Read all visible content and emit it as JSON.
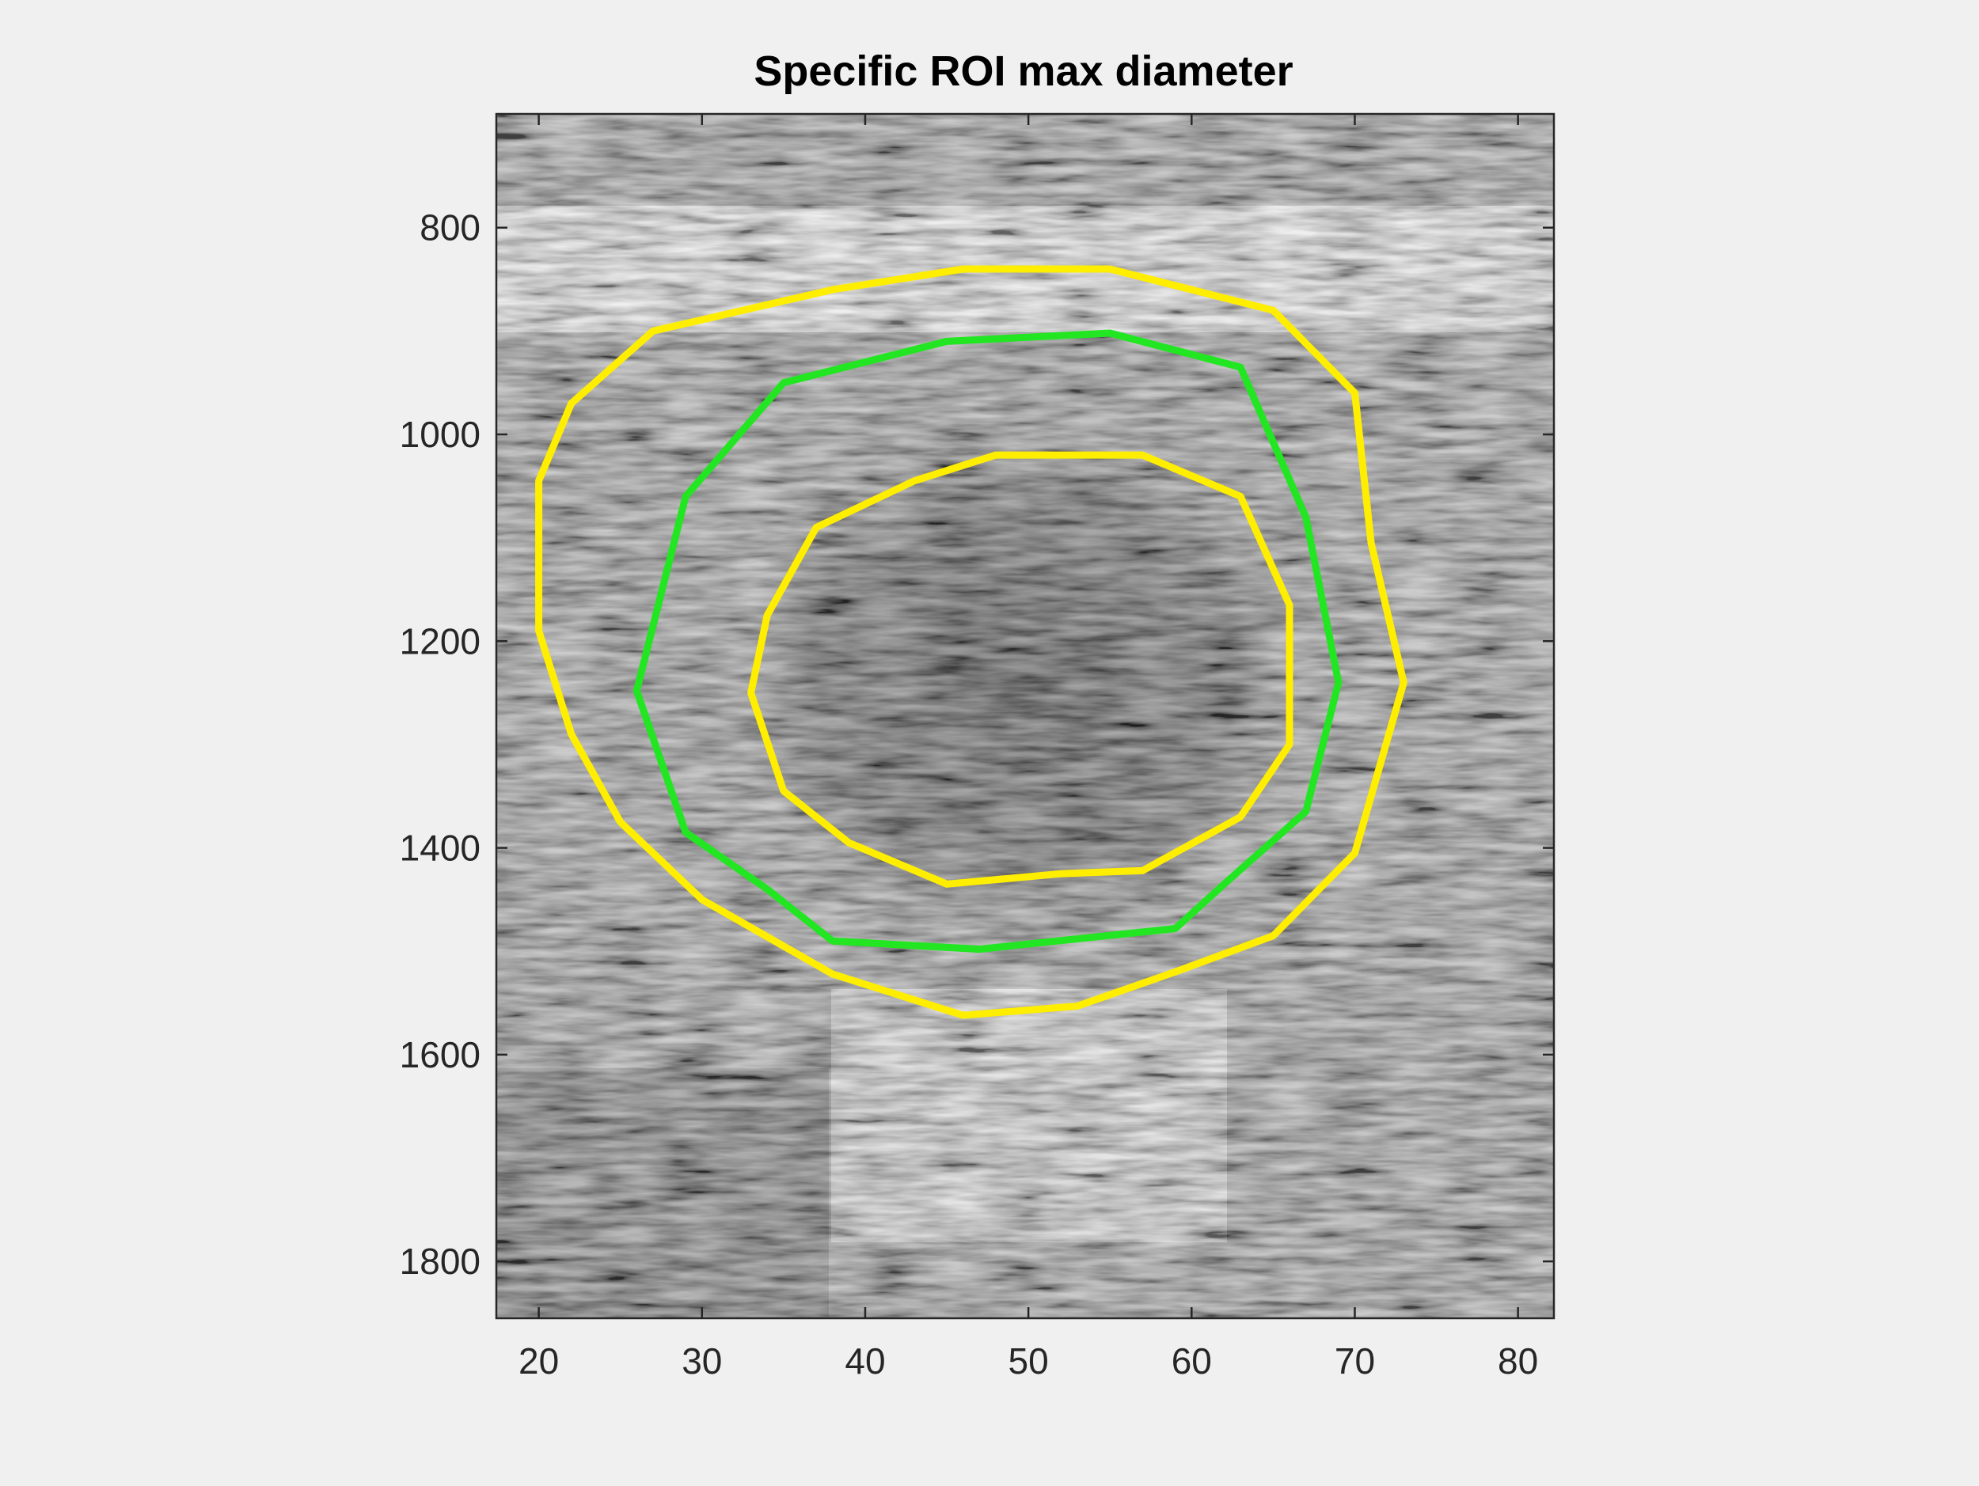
{
  "chart_data": {
    "type": "image",
    "title": "Specific ROI max diameter",
    "xlabel": "",
    "ylabel": "",
    "xlim": [
      17.4,
      82.2
    ],
    "ylim": [
      690,
      1855
    ],
    "y_reversed": true,
    "x_ticks": [
      20,
      30,
      40,
      50,
      60,
      70,
      80
    ],
    "y_ticks": [
      800,
      1000,
      1200,
      1400,
      1600,
      1800
    ],
    "colormap": "gray",
    "background_image": "grayscale ultrasound speckle; dark elliptical lumen centred near (51, 1230), bright bands near y 800-900 and y 1550-1750",
    "contours": [
      {
        "name": "",
        "color": "#ffee00",
        "points": [
          [
            46,
            1562
          ],
          [
            53,
            1553
          ],
          [
            59,
            1520
          ],
          [
            65,
            1485
          ],
          [
            70,
            1405
          ],
          [
            73,
            1240
          ],
          [
            71,
            1105
          ],
          [
            70,
            960
          ],
          [
            65,
            880
          ],
          [
            55,
            840
          ],
          [
            46,
            840
          ],
          [
            38,
            860
          ],
          [
            27,
            900
          ],
          [
            22,
            970
          ],
          [
            20,
            1045
          ],
          [
            20,
            1190
          ],
          [
            22,
            1290
          ],
          [
            25,
            1375
          ],
          [
            30,
            1450
          ],
          [
            38,
            1522
          ],
          [
            46,
            1562
          ]
        ]
      },
      {
        "name": "",
        "color": "#22e622",
        "points": [
          [
            47,
            1498
          ],
          [
            59,
            1478
          ],
          [
            62,
            1435
          ],
          [
            67,
            1365
          ],
          [
            69,
            1240
          ],
          [
            67,
            1080
          ],
          [
            63,
            935
          ],
          [
            55,
            902
          ],
          [
            45,
            910
          ],
          [
            35,
            950
          ],
          [
            29,
            1060
          ],
          [
            26,
            1248
          ],
          [
            29,
            1385
          ],
          [
            34,
            1440
          ],
          [
            38,
            1490
          ],
          [
            47,
            1498
          ]
        ]
      },
      {
        "name": "",
        "color": "#ffee00",
        "points": [
          [
            45,
            1435
          ],
          [
            52,
            1425
          ],
          [
            57,
            1422
          ],
          [
            63,
            1370
          ],
          [
            66,
            1300
          ],
          [
            66,
            1165
          ],
          [
            63,
            1060
          ],
          [
            57,
            1020
          ],
          [
            48,
            1020
          ],
          [
            43,
            1045
          ],
          [
            37,
            1090
          ],
          [
            34,
            1175
          ],
          [
            33,
            1250
          ],
          [
            35,
            1345
          ],
          [
            39,
            1395
          ],
          [
            45,
            1435
          ]
        ]
      }
    ]
  }
}
